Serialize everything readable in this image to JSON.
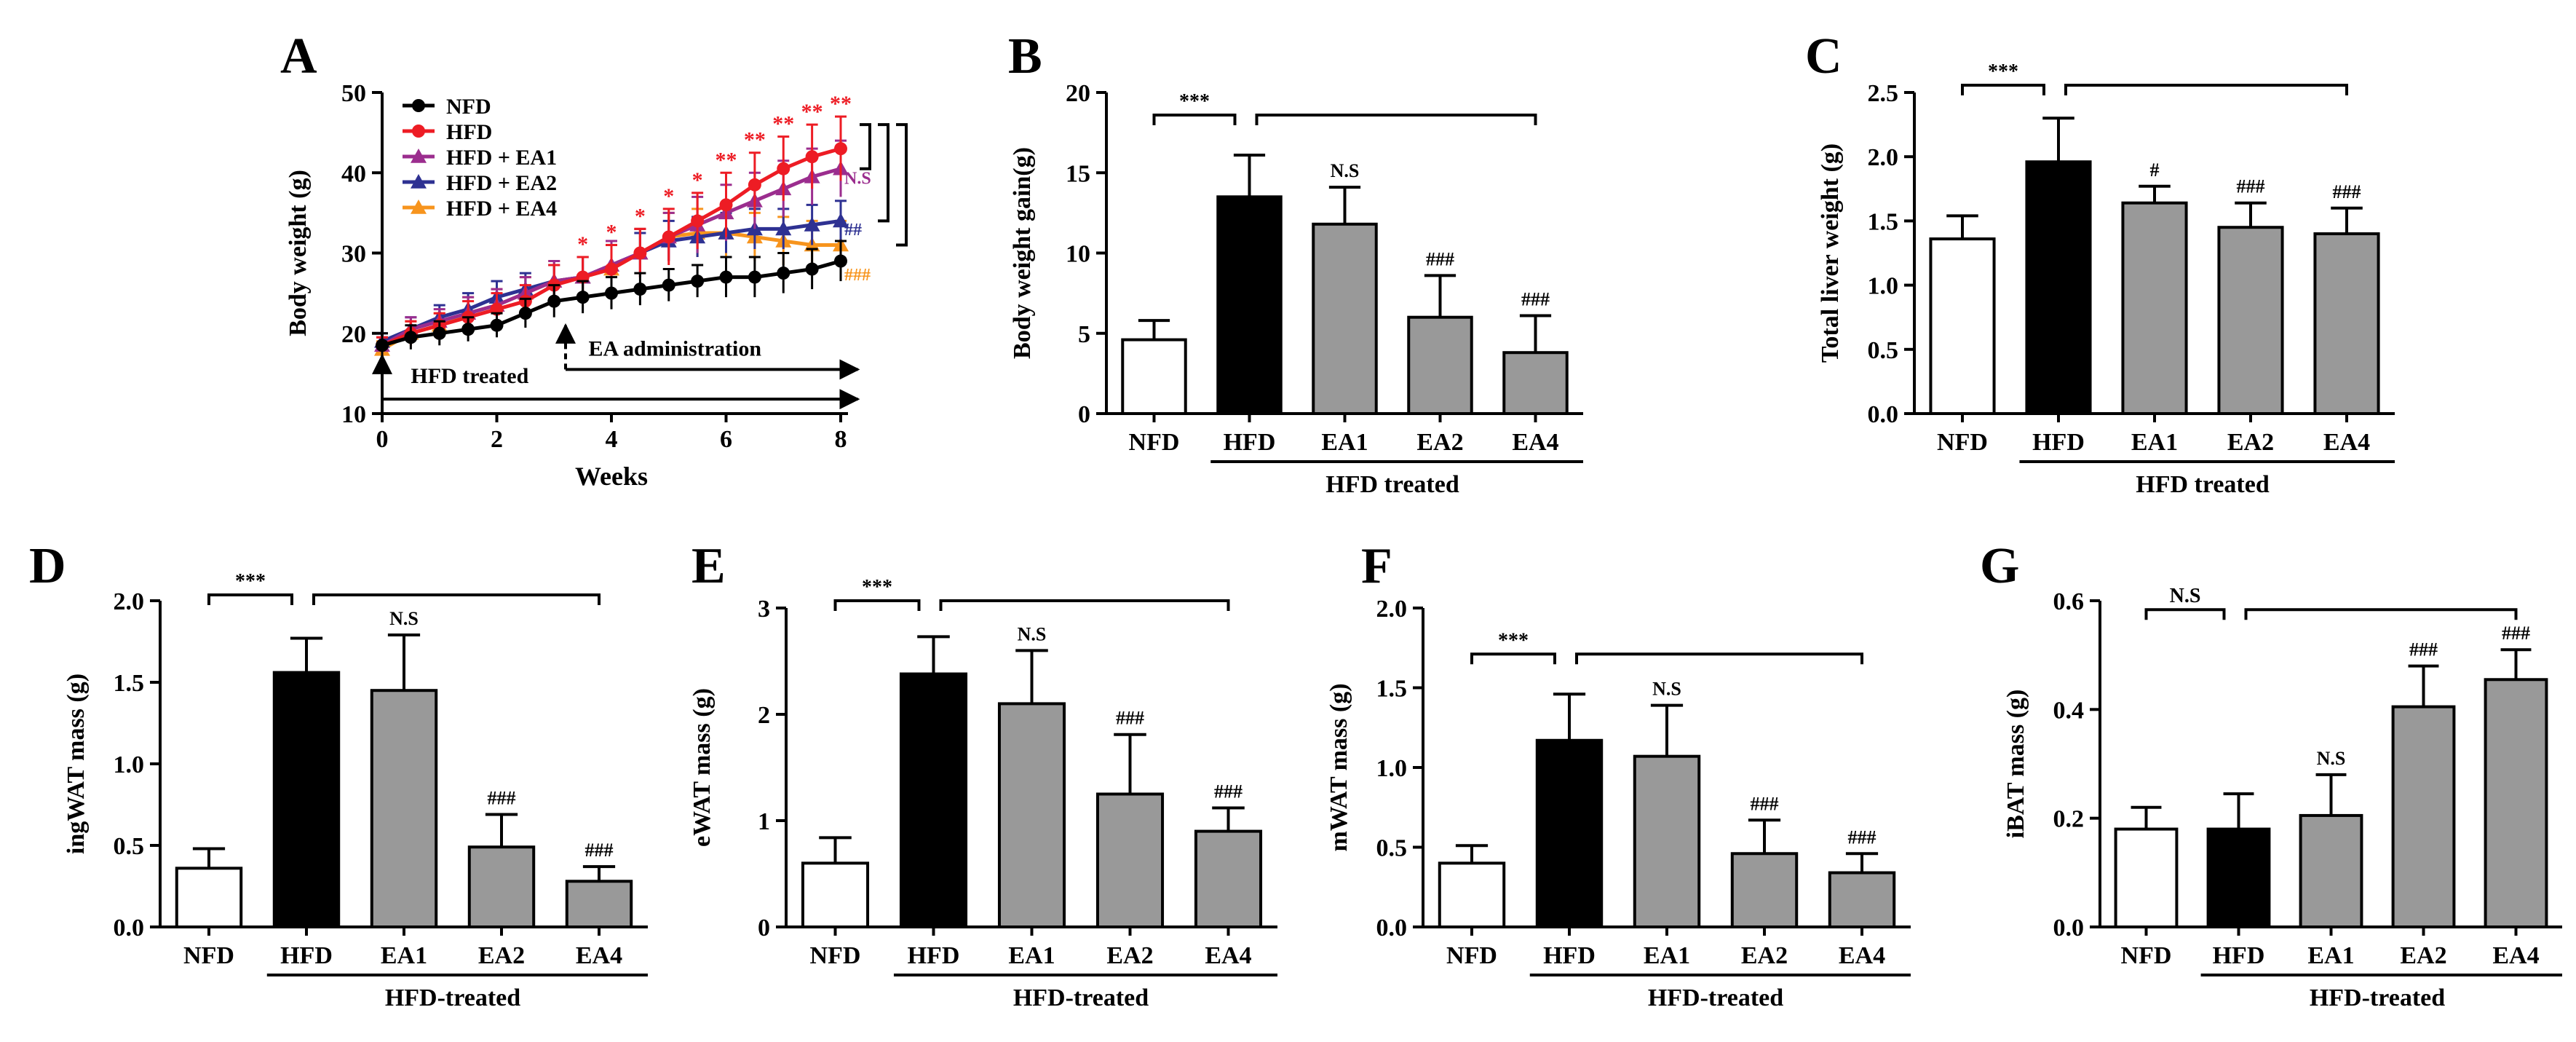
{
  "chart_data": [
    {
      "id": "A",
      "type": "line",
      "panel_letter": "A",
      "xlabel": "Weeks",
      "ylabel": "Body weight (g)",
      "xlim": [
        0,
        8
      ],
      "ylim": [
        10,
        50
      ],
      "x_ticks": [
        0,
        2,
        4,
        6,
        8
      ],
      "y_ticks": [
        10,
        20,
        30,
        40,
        50
      ],
      "x": [
        0,
        0.5,
        1,
        1.5,
        2,
        2.5,
        3,
        3.5,
        4,
        4.5,
        5,
        5.5,
        6,
        6.5,
        7,
        7.5,
        8
      ],
      "legend": {
        "position": "top-left",
        "items": [
          {
            "label": "NFD",
            "color": "#000000",
            "marker": "circle"
          },
          {
            "label": "HFD",
            "color": "#ed1c24",
            "marker": "circle"
          },
          {
            "label": "HFD + EA1",
            "color": "#9b2d8e",
            "marker": "triangle"
          },
          {
            "label": "HFD + EA2",
            "color": "#2e3192",
            "marker": "triangle"
          },
          {
            "label": "HFD + EA4",
            "color": "#f7941d",
            "marker": "triangle"
          }
        ]
      },
      "series": [
        {
          "name": "NFD",
          "color": "#000000",
          "marker": "circle",
          "values": [
            18.5,
            19.5,
            20.0,
            20.5,
            21.0,
            22.5,
            24.0,
            24.5,
            25.0,
            25.5,
            26.0,
            26.5,
            27.0,
            27.0,
            27.5,
            28.0,
            29.0
          ],
          "errors": [
            1.5,
            1.5,
            1.5,
            1.5,
            1.5,
            1.8,
            2.0,
            2.0,
            2.0,
            2.0,
            2.0,
            2.0,
            2.5,
            2.5,
            2.5,
            2.5,
            2.5
          ]
        },
        {
          "name": "HFD",
          "color": "#ed1c24",
          "marker": "circle",
          "values": [
            18.5,
            20.0,
            21.0,
            22.0,
            23.0,
            24.0,
            26.0,
            27.0,
            28.0,
            30.0,
            32.0,
            34.0,
            36.0,
            38.5,
            40.5,
            42.0,
            43.0
          ],
          "errors": [
            1.0,
            1.5,
            1.5,
            2.0,
            2.0,
            2.0,
            2.5,
            2.5,
            3.0,
            3.0,
            3.5,
            3.5,
            4.0,
            4.0,
            4.0,
            4.0,
            4.0
          ]
        },
        {
          "name": "HFD + EA1",
          "color": "#9b2d8e",
          "marker": "triangle",
          "values": [
            18.5,
            20.5,
            21.5,
            22.5,
            23.5,
            25.0,
            26.5,
            27.0,
            28.5,
            30.0,
            32.0,
            33.5,
            35.0,
            36.5,
            38.0,
            39.5,
            40.5
          ],
          "errors": [
            1.0,
            1.5,
            1.5,
            2.0,
            2.0,
            2.0,
            2.5,
            2.5,
            3.0,
            3.0,
            3.0,
            3.5,
            3.5,
            3.5,
            3.5,
            3.5,
            3.5
          ]
        },
        {
          "name": "HFD + EA2",
          "color": "#2e3192",
          "marker": "triangle",
          "values": [
            19.0,
            20.5,
            22.0,
            23.0,
            24.5,
            25.5,
            26.5,
            27.0,
            28.5,
            30.0,
            31.5,
            32.0,
            32.5,
            33.0,
            33.0,
            33.5,
            34.0
          ],
          "errors": [
            1.0,
            1.5,
            1.5,
            2.0,
            2.0,
            2.0,
            2.0,
            2.5,
            2.5,
            2.5,
            2.5,
            2.5,
            2.5,
            2.5,
            2.5,
            2.5,
            2.5
          ]
        },
        {
          "name": "HFD + EA4",
          "color": "#f7941d",
          "marker": "triangle",
          "values": [
            18.0,
            20.0,
            21.0,
            22.5,
            23.5,
            25.0,
            26.5,
            27.0,
            28.0,
            30.0,
            32.0,
            32.5,
            32.5,
            32.0,
            31.5,
            31.0,
            31.0
          ],
          "errors": [
            1.0,
            1.5,
            1.5,
            2.0,
            2.0,
            2.0,
            2.5,
            2.5,
            3.0,
            3.0,
            3.0,
            3.0,
            3.0,
            3.0,
            3.0,
            3.0,
            3.0
          ]
        }
      ],
      "significance_marks": {
        "text": "*",
        "x": [
          3.5,
          4.0,
          4.5,
          5.0,
          5.5,
          6.0,
          6.5,
          7.0,
          7.5,
          8.0
        ],
        "labels": [
          "*",
          "*",
          "*",
          "*",
          "*",
          "**",
          "**",
          "**",
          "**",
          "**"
        ]
      },
      "annotations": {
        "hfd_treated": "HFD treated",
        "ea_administration": "EA administration",
        "bracket_labels": [
          {
            "text": "N.S",
            "color": "#9b2d8e"
          },
          {
            "text": "##",
            "color": "#2e3192"
          },
          {
            "text": "###",
            "color": "#f7941d"
          }
        ]
      }
    },
    {
      "id": "B",
      "type": "bar",
      "panel_letter": "B",
      "ylabel": "Body weight gain(g)",
      "ylim": [
        0,
        20
      ],
      "y_ticks": [
        0,
        5,
        10,
        15,
        20
      ],
      "categories": [
        "NFD",
        "HFD",
        "EA1",
        "EA2",
        "EA4"
      ],
      "values": [
        4.6,
        13.5,
        11.8,
        6.0,
        3.8
      ],
      "errors": [
        1.2,
        2.6,
        2.3,
        2.6,
        2.3
      ],
      "fills": [
        "#ffffff",
        "#000000",
        "#999999",
        "#999999",
        "#999999"
      ],
      "bar_labels": [
        "",
        "",
        "N.S",
        "###",
        "###"
      ],
      "top_bracket_label": "***",
      "group_label": "HFD treated"
    },
    {
      "id": "C",
      "type": "bar",
      "panel_letter": "C",
      "ylabel": "Total liver weight (g)",
      "ylim": [
        0,
        2.5
      ],
      "y_ticks": [
        0.0,
        0.5,
        1.0,
        1.5,
        2.0,
        2.5
      ],
      "y_tick_labels": [
        "0.0",
        "0.5",
        "1.0",
        "1.5",
        "2.0",
        "2.5"
      ],
      "categories": [
        "NFD",
        "HFD",
        "EA1",
        "EA2",
        "EA4"
      ],
      "values": [
        1.36,
        1.96,
        1.64,
        1.45,
        1.4
      ],
      "errors": [
        0.18,
        0.34,
        0.13,
        0.19,
        0.2
      ],
      "fills": [
        "#ffffff",
        "#000000",
        "#999999",
        "#999999",
        "#999999"
      ],
      "bar_labels": [
        "",
        "",
        "#",
        "###",
        "###"
      ],
      "top_bracket_label": "***",
      "group_label": "HFD treated"
    },
    {
      "id": "D",
      "type": "bar",
      "panel_letter": "D",
      "ylabel": "ingWAT mass (g)",
      "ylim": [
        0,
        2.0
      ],
      "y_ticks": [
        0.0,
        0.5,
        1.0,
        1.5,
        2.0
      ],
      "y_tick_labels": [
        "0.0",
        "0.5",
        "1.0",
        "1.5",
        "2.0"
      ],
      "categories": [
        "NFD",
        "HFD",
        "EA1",
        "EA2",
        "EA4"
      ],
      "values": [
        0.36,
        1.56,
        1.45,
        0.49,
        0.28
      ],
      "errors": [
        0.12,
        0.21,
        0.34,
        0.2,
        0.09
      ],
      "fills": [
        "#ffffff",
        "#000000",
        "#999999",
        "#999999",
        "#999999"
      ],
      "bar_labels": [
        "",
        "",
        "N.S",
        "###",
        "###"
      ],
      "top_bracket_label": "***",
      "group_label": "HFD-treated"
    },
    {
      "id": "E",
      "type": "bar",
      "panel_letter": "E",
      "ylabel": "eWAT mass (g)",
      "ylim": [
        0,
        3
      ],
      "y_ticks": [
        0,
        1,
        2,
        3
      ],
      "categories": [
        "NFD",
        "HFD",
        "EA1",
        "EA2",
        "EA4"
      ],
      "values": [
        0.6,
        2.38,
        2.1,
        1.25,
        0.9
      ],
      "errors": [
        0.24,
        0.35,
        0.5,
        0.56,
        0.22
      ],
      "fills": [
        "#ffffff",
        "#000000",
        "#999999",
        "#999999",
        "#999999"
      ],
      "bar_labels": [
        "",
        "",
        "N.S",
        "###",
        "###"
      ],
      "top_bracket_label": "***",
      "group_label": "HFD-treated"
    },
    {
      "id": "F",
      "type": "bar",
      "panel_letter": "F",
      "ylabel": "mWAT mass (g)",
      "ylim": [
        0,
        2.0
      ],
      "y_ticks": [
        0.0,
        0.5,
        1.0,
        1.5,
        2.0
      ],
      "y_tick_labels": [
        "0.0",
        "0.5",
        "1.0",
        "1.5",
        "2.0"
      ],
      "categories": [
        "NFD",
        "HFD",
        "EA1",
        "EA2",
        "EA4"
      ],
      "values": [
        0.4,
        1.17,
        1.07,
        0.46,
        0.34
      ],
      "errors": [
        0.11,
        0.29,
        0.32,
        0.21,
        0.12
      ],
      "fills": [
        "#ffffff",
        "#000000",
        "#999999",
        "#999999",
        "#999999"
      ],
      "bar_labels": [
        "",
        "",
        "N.S",
        "###",
        "###"
      ],
      "top_bracket_label": "***",
      "group_label": "HFD-treated"
    },
    {
      "id": "G",
      "type": "bar",
      "panel_letter": "G",
      "ylabel": "iBAT mass (g)",
      "ylim": [
        0,
        0.6
      ],
      "y_ticks": [
        0.0,
        0.2,
        0.4,
        0.6
      ],
      "y_tick_labels": [
        "0.0",
        "0.2",
        "0.4",
        "0.6"
      ],
      "categories": [
        "NFD",
        "HFD",
        "EA1",
        "EA2",
        "EA4"
      ],
      "values": [
        0.18,
        0.18,
        0.205,
        0.405,
        0.455
      ],
      "errors": [
        0.04,
        0.065,
        0.075,
        0.075,
        0.055
      ],
      "fills": [
        "#ffffff",
        "#000000",
        "#999999",
        "#999999",
        "#999999"
      ],
      "bar_labels": [
        "",
        "",
        "N.S",
        "###",
        "###"
      ],
      "top_bracket_label": "N.S",
      "group_label": "HFD-treated"
    }
  ]
}
